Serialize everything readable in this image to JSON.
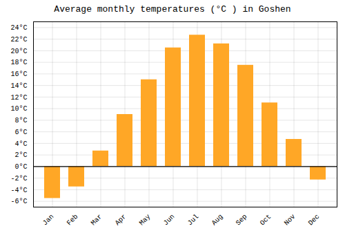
{
  "chart_data": {
    "type": "bar",
    "title": "Average monthly temperatures (°C ) in Goshen",
    "categories": [
      "Jan",
      "Feb",
      "Mar",
      "Apr",
      "May",
      "Jun",
      "Jul",
      "Aug",
      "Sep",
      "Oct",
      "Nov",
      "Dec"
    ],
    "values": [
      -5.5,
      -3.5,
      2.7,
      9.0,
      15.0,
      20.5,
      22.7,
      21.2,
      17.5,
      11.0,
      4.7,
      -2.3
    ],
    "color": "#FFA726",
    "ylim": [
      -7,
      25
    ],
    "yticks": [
      {
        "value": -6,
        "label": "-6°C"
      },
      {
        "value": -4,
        "label": "-4°C"
      },
      {
        "value": -2,
        "label": "-2°C"
      },
      {
        "value": 0,
        "label": "0°C"
      },
      {
        "value": 2,
        "label": "2°C"
      },
      {
        "value": 4,
        "label": "4°C"
      },
      {
        "value": 6,
        "label": "6°C"
      },
      {
        "value": 8,
        "label": "8°C"
      },
      {
        "value": 10,
        "label": "10°C"
      },
      {
        "value": 12,
        "label": "12°C"
      },
      {
        "value": 14,
        "label": "14°C"
      },
      {
        "value": 16,
        "label": "16°C"
      },
      {
        "value": 18,
        "label": "18°C"
      },
      {
        "value": 20,
        "label": "20°C"
      },
      {
        "value": 22,
        "label": "22°C"
      },
      {
        "value": 24,
        "label": "24°C"
      }
    ],
    "grid": true
  }
}
